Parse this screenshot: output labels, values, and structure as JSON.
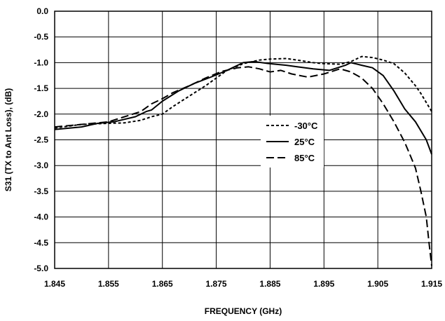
{
  "chart_data": {
    "type": "line",
    "xlabel": "FREQUENCY (GHz)",
    "ylabel": "S31 (TX to Ant Loss), (dB)",
    "xlim": [
      1.845,
      1.915
    ],
    "ylim": [
      -5.0,
      0.0
    ],
    "x_ticks": [
      "1.845",
      "1.855",
      "1.865",
      "1.875",
      "1.885",
      "1.895",
      "1.905",
      "1.915"
    ],
    "y_ticks": [
      "0.0",
      "-0.5",
      "-1.0",
      "-1.5",
      "-2.0",
      "-2.5",
      "-3.0",
      "-3.5",
      "-4.0",
      "-4.5",
      "-5.0"
    ],
    "grid": true,
    "legend_position": "center-right",
    "series": [
      {
        "name": "-30°C",
        "dash": "short-dash",
        "x": [
          1.845,
          1.85,
          1.855,
          1.858,
          1.861,
          1.863,
          1.865,
          1.867,
          1.87,
          1.873,
          1.875,
          1.877,
          1.88,
          1.883,
          1.885,
          1.888,
          1.89,
          1.893,
          1.895,
          1.898,
          1.9,
          1.902,
          1.904,
          1.906,
          1.908,
          1.91,
          1.912,
          1.913,
          1.915
        ],
        "y": [
          -2.27,
          -2.2,
          -2.18,
          -2.17,
          -2.12,
          -2.05,
          -2.0,
          -1.85,
          -1.65,
          -1.45,
          -1.3,
          -1.15,
          -1.02,
          -0.95,
          -0.93,
          -0.92,
          -0.95,
          -1.0,
          -1.02,
          -1.03,
          -0.98,
          -0.88,
          -0.9,
          -0.95,
          -1.02,
          -1.2,
          -1.45,
          -1.6,
          -1.95
        ]
      },
      {
        "name": "25°C",
        "dash": "solid",
        "x": [
          1.845,
          1.85,
          1.853,
          1.856,
          1.86,
          1.862,
          1.863,
          1.865,
          1.868,
          1.871,
          1.874,
          1.877,
          1.88,
          1.882,
          1.885,
          1.888,
          1.89,
          1.893,
          1.896,
          1.899,
          1.9,
          1.902,
          1.904,
          1.906,
          1.908,
          1.91,
          1.912,
          1.914,
          1.915
        ],
        "y": [
          -2.3,
          -2.25,
          -2.18,
          -2.15,
          -2.05,
          -1.95,
          -1.92,
          -1.75,
          -1.55,
          -1.4,
          -1.28,
          -1.15,
          -1.0,
          -0.98,
          -1.02,
          -1.05,
          -1.08,
          -1.12,
          -1.15,
          -1.05,
          -1.0,
          -1.05,
          -1.1,
          -1.25,
          -1.55,
          -1.9,
          -2.15,
          -2.5,
          -2.78
        ]
      },
      {
        "name": "85°C",
        "dash": "long-dash",
        "x": [
          1.845,
          1.85,
          1.855,
          1.858,
          1.861,
          1.863,
          1.865,
          1.867,
          1.87,
          1.873,
          1.876,
          1.879,
          1.881,
          1.883,
          1.885,
          1.887,
          1.889,
          1.892,
          1.895,
          1.898,
          1.9,
          1.902,
          1.904,
          1.906,
          1.908,
          1.91,
          1.911,
          1.912,
          1.913,
          1.914,
          1.9145,
          1.915
        ],
        "y": [
          -2.25,
          -2.2,
          -2.15,
          -2.05,
          -1.95,
          -1.8,
          -1.7,
          -1.58,
          -1.45,
          -1.3,
          -1.17,
          -1.1,
          -1.08,
          -1.12,
          -1.18,
          -1.15,
          -1.22,
          -1.28,
          -1.22,
          -1.12,
          -1.18,
          -1.3,
          -1.5,
          -1.8,
          -2.15,
          -2.55,
          -2.8,
          -3.05,
          -3.5,
          -4.0,
          -4.5,
          -4.95
        ]
      }
    ]
  }
}
